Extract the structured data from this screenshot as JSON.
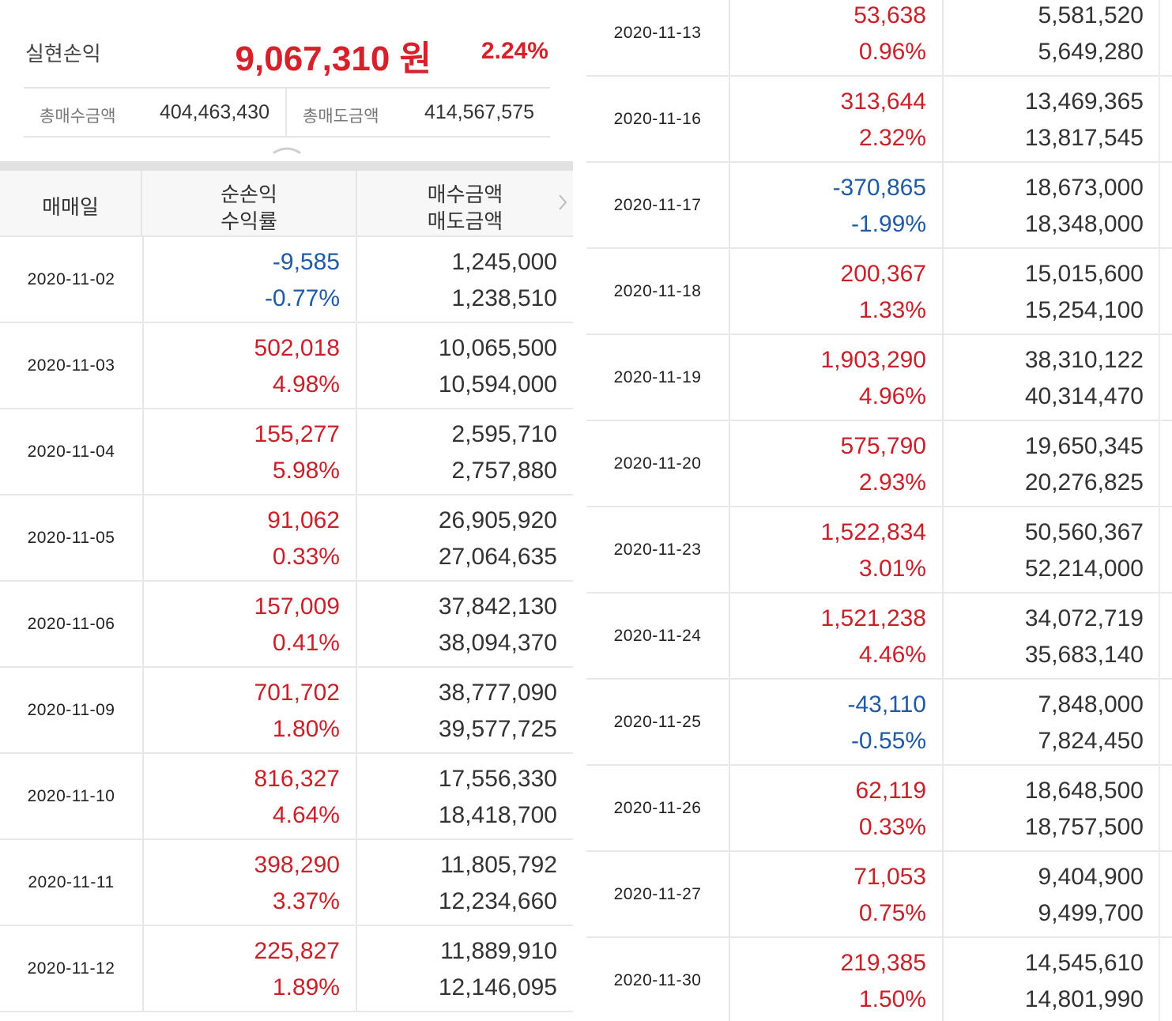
{
  "summary": {
    "label": "실현손익",
    "amount": "9,067,310 원",
    "rate": "2.24%",
    "total_buy_label": "총매수금액",
    "total_buy_value": "404,463,430",
    "total_sell_label": "총매도금액",
    "total_sell_value": "414,567,575"
  },
  "table_header": {
    "date": "매매일",
    "pl_line1": "순손익",
    "pl_line2": "수익률",
    "amt_line1": "매수금액",
    "amt_line2": "매도금액"
  },
  "left_rows": [
    {
      "date": "2020-11-02",
      "profit": "-9,585",
      "rate": "-0.77%",
      "buy": "1,245,000",
      "sell": "1,238,510",
      "sign": "neg"
    },
    {
      "date": "2020-11-03",
      "profit": "502,018",
      "rate": "4.98%",
      "buy": "10,065,500",
      "sell": "10,594,000",
      "sign": "pos"
    },
    {
      "date": "2020-11-04",
      "profit": "155,277",
      "rate": "5.98%",
      "buy": "2,595,710",
      "sell": "2,757,880",
      "sign": "pos"
    },
    {
      "date": "2020-11-05",
      "profit": "91,062",
      "rate": "0.33%",
      "buy": "26,905,920",
      "sell": "27,064,635",
      "sign": "pos"
    },
    {
      "date": "2020-11-06",
      "profit": "157,009",
      "rate": "0.41%",
      "buy": "37,842,130",
      "sell": "38,094,370",
      "sign": "pos"
    },
    {
      "date": "2020-11-09",
      "profit": "701,702",
      "rate": "1.80%",
      "buy": "38,777,090",
      "sell": "39,577,725",
      "sign": "pos"
    },
    {
      "date": "2020-11-10",
      "profit": "816,327",
      "rate": "4.64%",
      "buy": "17,556,330",
      "sell": "18,418,700",
      "sign": "pos"
    },
    {
      "date": "2020-11-11",
      "profit": "398,290",
      "rate": "3.37%",
      "buy": "11,805,792",
      "sell": "12,234,660",
      "sign": "pos"
    },
    {
      "date": "2020-11-12",
      "profit": "225,827",
      "rate": "1.89%",
      "buy": "11,889,910",
      "sell": "12,146,095",
      "sign": "pos"
    }
  ],
  "right_rows": [
    {
      "date": "2020-11-13",
      "profit": "53,638",
      "rate": "0.96%",
      "buy": "5,581,520",
      "sell": "5,649,280",
      "sign": "pos"
    },
    {
      "date": "2020-11-16",
      "profit": "313,644",
      "rate": "2.32%",
      "buy": "13,469,365",
      "sell": "13,817,545",
      "sign": "pos"
    },
    {
      "date": "2020-11-17",
      "profit": "-370,865",
      "rate": "-1.99%",
      "buy": "18,673,000",
      "sell": "18,348,000",
      "sign": "neg"
    },
    {
      "date": "2020-11-18",
      "profit": "200,367",
      "rate": "1.33%",
      "buy": "15,015,600",
      "sell": "15,254,100",
      "sign": "pos"
    },
    {
      "date": "2020-11-19",
      "profit": "1,903,290",
      "rate": "4.96%",
      "buy": "38,310,122",
      "sell": "40,314,470",
      "sign": "pos"
    },
    {
      "date": "2020-11-20",
      "profit": "575,790",
      "rate": "2.93%",
      "buy": "19,650,345",
      "sell": "20,276,825",
      "sign": "pos"
    },
    {
      "date": "2020-11-23",
      "profit": "1,522,834",
      "rate": "3.01%",
      "buy": "50,560,367",
      "sell": "52,214,000",
      "sign": "pos"
    },
    {
      "date": "2020-11-24",
      "profit": "1,521,238",
      "rate": "4.46%",
      "buy": "34,072,719",
      "sell": "35,683,140",
      "sign": "pos"
    },
    {
      "date": "2020-11-25",
      "profit": "-43,110",
      "rate": "-0.55%",
      "buy": "7,848,000",
      "sell": "7,824,450",
      "sign": "neg"
    },
    {
      "date": "2020-11-26",
      "profit": "62,119",
      "rate": "0.33%",
      "buy": "18,648,500",
      "sell": "18,757,500",
      "sign": "pos"
    },
    {
      "date": "2020-11-27",
      "profit": "71,053",
      "rate": "0.75%",
      "buy": "9,404,900",
      "sell": "9,499,700",
      "sign": "pos"
    },
    {
      "date": "2020-11-30",
      "profit": "219,385",
      "rate": "1.50%",
      "buy": "14,545,610",
      "sell": "14,801,990",
      "sign": "pos"
    }
  ],
  "colors": {
    "positive": "#c9212a",
    "negative": "#1f5aa6",
    "summary_red": "#d6212b"
  },
  "icons": {
    "collapse": "chevron-up-icon",
    "header_arrow": "chevron-right-icon"
  }
}
